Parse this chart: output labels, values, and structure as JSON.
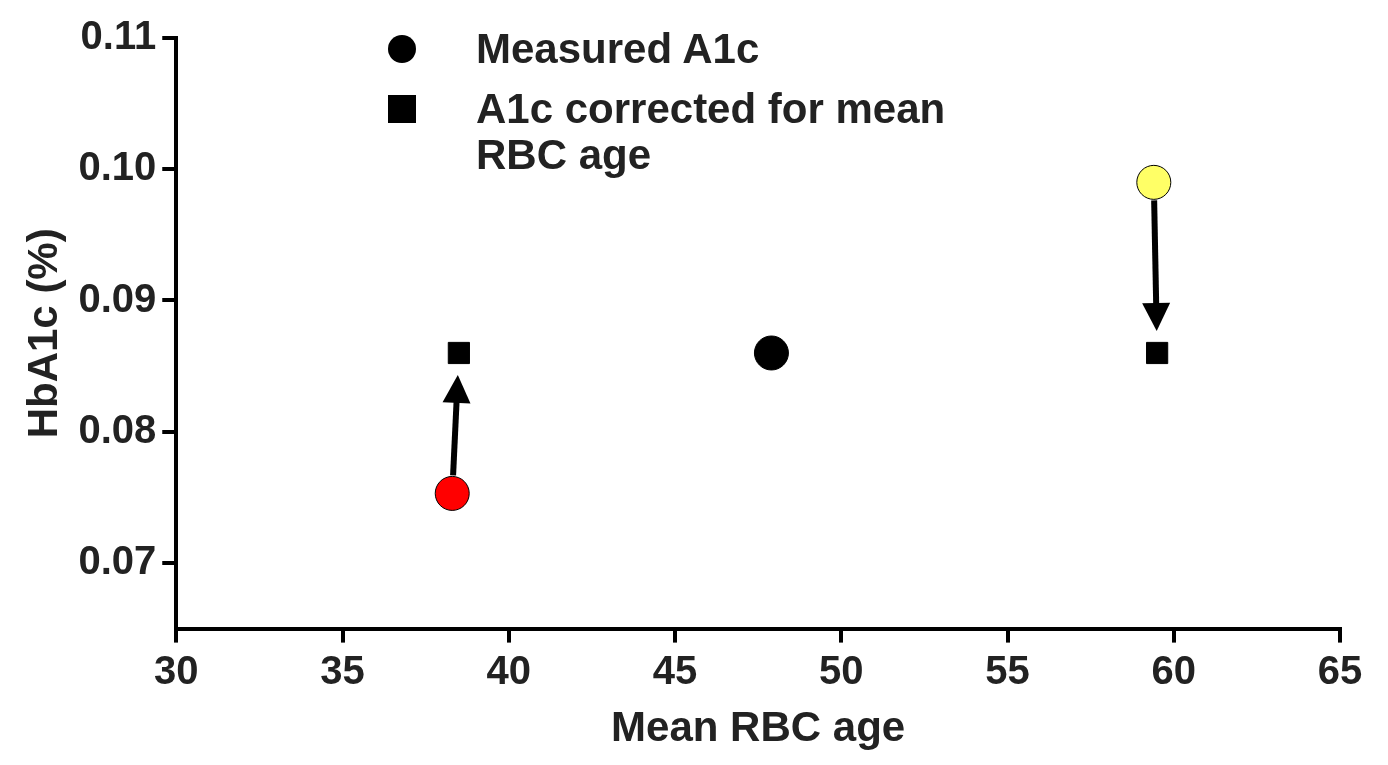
{
  "chart_data": {
    "type": "scatter",
    "xlabel": "Mean RBC age",
    "ylabel": "HbA1c (%)",
    "xlim": [
      30,
      65
    ],
    "xticks": [
      30,
      35,
      40,
      45,
      50,
      55,
      60,
      65
    ],
    "ylim": [
      0.065,
      0.11
    ],
    "yticks": [
      0.07,
      0.08,
      0.09,
      {
        "value": 0.1,
        "label": "0.10"
      },
      0.11
    ],
    "grid": false,
    "legend": "top left",
    "series": [
      {
        "name": "Measured A1c",
        "marker": "circle",
        "color": "#000000",
        "colors": [
          "#ff0000",
          "#000000",
          "#ffff66"
        ],
        "x": [
          38.3,
          47.9,
          59.4
        ],
        "values": [
          0.0753,
          0.086,
          0.099
        ]
      },
      {
        "name": "A1c corrected for mean RBC age",
        "marker": "square",
        "color": "#000000",
        "x": [
          38.5,
          59.5
        ],
        "values": [
          0.086,
          0.086
        ]
      }
    ]
  }
}
